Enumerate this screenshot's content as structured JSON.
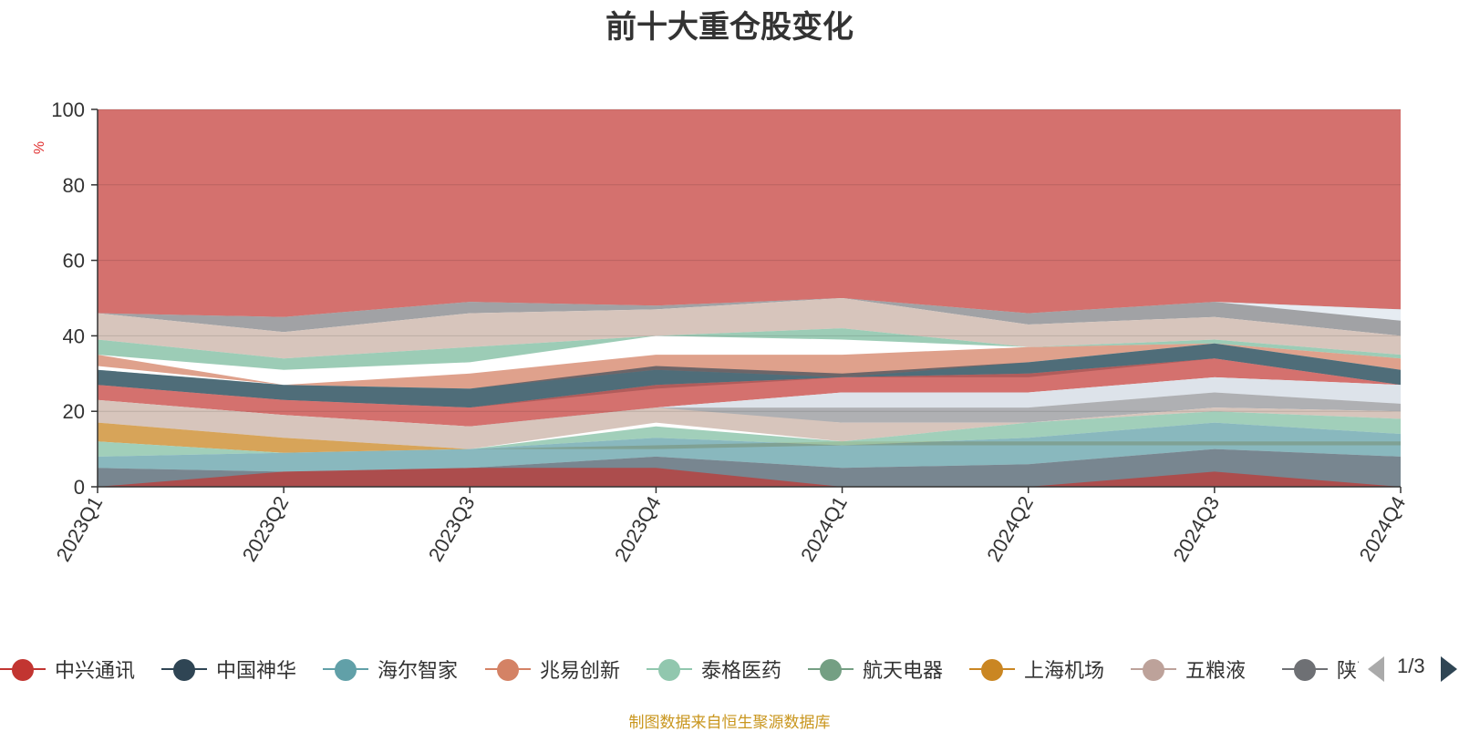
{
  "title": "前十大重仓股变化",
  "source_note": "制图数据来自恒生聚源数据库",
  "pager": {
    "page_text": "1/3"
  },
  "chart_data": {
    "type": "area",
    "stacked": false,
    "title": "前十大重仓股变化",
    "ylabel": "%",
    "ylim": [
      0,
      100
    ],
    "yticks": [
      0,
      20,
      40,
      60,
      80,
      100
    ],
    "grid": true,
    "legend_position": "bottom",
    "categories": [
      "2023Q1",
      "2023Q2",
      "2023Q3",
      "2023Q4",
      "2024Q1",
      "2024Q2",
      "2024Q3",
      "2024Q4"
    ],
    "bands": [
      {
        "name": "bg-top",
        "color": "#c23531",
        "opacity": 0.7,
        "upper": [
          100,
          100,
          100,
          100,
          100,
          100,
          100,
          100
        ],
        "lower": [
          46,
          45,
          49,
          48,
          50,
          46,
          49,
          47
        ]
      },
      {
        "name": "b-grey1",
        "color": "#6e7074",
        "opacity": 0.65,
        "upper": [
          46,
          45,
          49,
          48,
          50,
          46,
          49,
          47
        ],
        "lower": [
          46,
          41,
          46,
          47,
          50,
          43,
          45,
          40
        ]
      },
      {
        "name": "b-white1",
        "color": "#e6ecf2",
        "opacity": 1,
        "upper": [
          46,
          46,
          49,
          48,
          50,
          46,
          49,
          47
        ],
        "lower": [
          46,
          46,
          49,
          48,
          50,
          46,
          49,
          44
        ]
      },
      {
        "name": "b-tan1",
        "color": "#d7c5bc",
        "opacity": 1,
        "upper": [
          46,
          41,
          46,
          47,
          50,
          43,
          45,
          40
        ],
        "lower": [
          39,
          34,
          37,
          40,
          42,
          37,
          39,
          35
        ]
      },
      {
        "name": "b-green1",
        "color": "#91c7ae",
        "opacity": 0.9,
        "upper": [
          39,
          34,
          37,
          40,
          42,
          37,
          39,
          35
        ],
        "lower": [
          35,
          31,
          33,
          40,
          39,
          37,
          38,
          34
        ]
      },
      {
        "name": "b-orange",
        "color": "#d48265",
        "opacity": 0.75,
        "upper": [
          35,
          27,
          30,
          35,
          35,
          37,
          38,
          34
        ],
        "lower": [
          32,
          27,
          26,
          31,
          29,
          33,
          38,
          31
        ]
      },
      {
        "name": "b-teal1",
        "color": "#61a0a8",
        "opacity": 0.75,
        "upper": [
          31,
          27,
          26,
          31,
          29,
          33,
          38,
          31
        ],
        "lower": [
          27,
          23,
          21,
          26,
          29,
          29,
          34,
          27
        ]
      },
      {
        "name": "b-navy1",
        "color": "#2f4554",
        "opacity": 0.65,
        "upper": [
          31,
          27,
          26,
          32,
          30,
          33,
          38,
          31
        ],
        "lower": [
          27,
          23,
          21,
          27,
          29,
          30,
          34,
          27
        ]
      },
      {
        "name": "b-red2",
        "color": "#c23531",
        "opacity": 0.7,
        "upper": [
          27,
          23,
          21,
          27,
          29,
          30,
          34,
          27
        ],
        "lower": [
          23,
          19,
          16,
          21,
          25,
          25,
          29,
          27
        ]
      },
      {
        "name": "b-white2",
        "color": "#dde3ea",
        "opacity": 1,
        "upper": [
          23,
          19,
          16,
          21,
          25,
          25,
          29,
          27
        ],
        "lower": [
          23,
          19,
          16,
          21,
          21,
          21,
          25,
          22
        ]
      },
      {
        "name": "b-grey2",
        "color": "#6e7074",
        "opacity": 0.55,
        "upper": [
          23,
          19,
          16,
          21,
          21,
          21,
          25,
          22
        ],
        "lower": [
          23,
          19,
          16,
          20,
          17,
          17,
          21,
          20
        ]
      },
      {
        "name": "b-tan2",
        "color": "#d7c5bc",
        "opacity": 1,
        "upper": [
          23,
          19,
          16,
          21,
          17,
          17,
          21,
          20
        ],
        "lower": [
          17,
          13,
          10,
          17,
          12,
          17,
          20,
          18
        ]
      },
      {
        "name": "b-gold",
        "color": "#ca8622",
        "opacity": 0.75,
        "upper": [
          17,
          13,
          10,
          11,
          12,
          12,
          12,
          12
        ],
        "lower": [
          12,
          9,
          10,
          10,
          11,
          11,
          11,
          11
        ]
      },
      {
        "name": "b-green2",
        "color": "#91c7ae",
        "opacity": 0.85,
        "upper": [
          12,
          9,
          10,
          16,
          12,
          17,
          20,
          18
        ],
        "lower": [
          8,
          9,
          10,
          13,
          11,
          13,
          17,
          14
        ]
      },
      {
        "name": "b-teal2",
        "color": "#61a0a8",
        "opacity": 0.75,
        "upper": [
          8,
          9,
          10,
          13,
          11,
          13,
          17,
          14
        ],
        "lower": [
          5,
          4,
          5,
          8,
          5,
          6,
          10,
          8
        ]
      },
      {
        "name": "b-navy2",
        "color": "#2f4554",
        "opacity": 0.65,
        "upper": [
          5,
          4,
          5,
          8,
          5,
          6,
          10,
          8
        ],
        "lower": [
          0,
          0,
          0,
          0,
          0,
          0,
          0,
          0
        ]
      },
      {
        "name": "b-red3",
        "color": "#c23531",
        "opacity": 0.7,
        "upper": [
          0,
          4,
          5,
          5,
          0,
          0,
          4,
          0
        ],
        "lower": [
          0,
          0,
          0,
          0,
          0,
          0,
          0,
          0
        ]
      }
    ],
    "legend": [
      {
        "name": "中兴通讯",
        "color": "#c23531"
      },
      {
        "name": "中国神华",
        "color": "#2f4554"
      },
      {
        "name": "海尔智家",
        "color": "#61a0a8"
      },
      {
        "name": "兆易创新",
        "color": "#d48265"
      },
      {
        "name": "泰格医药",
        "color": "#91c7ae"
      },
      {
        "name": "航天电器",
        "color": "#749f83"
      },
      {
        "name": "上海机场",
        "color": "#ca8622"
      },
      {
        "name": "五粮液",
        "color": "#bda29a"
      },
      {
        "name": "陕西煤业",
        "color": "#6e7074"
      }
    ]
  }
}
